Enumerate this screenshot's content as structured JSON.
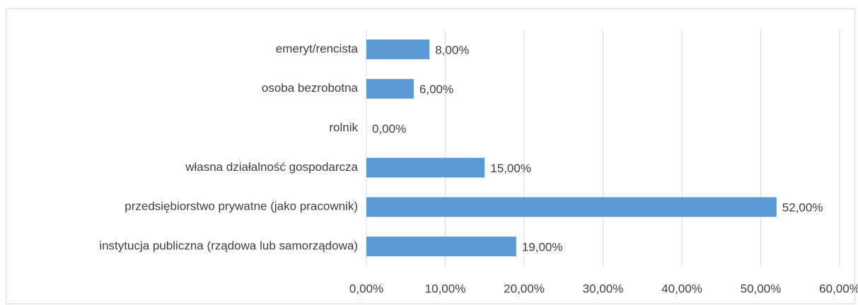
{
  "chart_data": {
    "type": "bar",
    "orientation": "horizontal",
    "categories": [
      "emeryt/rencista",
      "osoba bezrobotna",
      "rolnik",
      "własna działalność gospodarcza",
      "przedsiębiorstwo prywatne (jako pracownik)",
      "instytucja publiczna (rządowa lub samorządowa)"
    ],
    "values": [
      8,
      6,
      0,
      15,
      52,
      19
    ],
    "value_labels": [
      "8,00%",
      "6,00%",
      "0,00%",
      "15,00%",
      "52,00%",
      "19,00%"
    ],
    "color": "#5b9bd5",
    "xlim": [
      0,
      60
    ],
    "xticks": [
      {
        "value": 0,
        "label": "0,00%"
      },
      {
        "value": 10,
        "label": "10,00%"
      },
      {
        "value": 20,
        "label": "20,00%"
      },
      {
        "value": 30,
        "label": "30,00%"
      },
      {
        "value": 40,
        "label": "40,00%"
      },
      {
        "value": 50,
        "label": "50,00%"
      },
      {
        "value": 60,
        "label": "60,00%"
      }
    ],
    "grid": true
  }
}
